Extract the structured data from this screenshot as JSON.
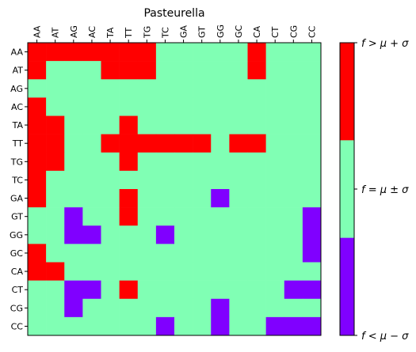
{
  "chart_data": {
    "type": "heatmap",
    "title": "Pasteurella",
    "x_labels": [
      "AA",
      "AT",
      "AG",
      "AC",
      "TA",
      "TT",
      "TG",
      "TC",
      "GA",
      "GT",
      "GG",
      "GC",
      "CA",
      "CT",
      "CG",
      "CC"
    ],
    "y_labels": [
      "AA",
      "AT",
      "AG",
      "AC",
      "TA",
      "TT",
      "TG",
      "TC",
      "GA",
      "GT",
      "GG",
      "GC",
      "CA",
      "CT",
      "CG",
      "CC"
    ],
    "x_axis_position": "top",
    "categories": [
      {
        "code": 1,
        "label": "f > μ + σ",
        "color": "#ff0000"
      },
      {
        "code": 0,
        "label": "f = μ ± σ",
        "color": "#80ffb4"
      },
      {
        "code": -1,
        "label": "f < μ − σ",
        "color": "#8000ff"
      }
    ],
    "matrix": [
      [
        1,
        1,
        1,
        1,
        1,
        1,
        1,
        0,
        0,
        0,
        0,
        0,
        1,
        0,
        0,
        0
      ],
      [
        1,
        0,
        0,
        0,
        1,
        1,
        1,
        0,
        0,
        0,
        0,
        0,
        1,
        0,
        0,
        0
      ],
      [
        0,
        0,
        0,
        0,
        0,
        0,
        0,
        0,
        0,
        0,
        0,
        0,
        0,
        0,
        0,
        0
      ],
      [
        1,
        0,
        0,
        0,
        0,
        0,
        0,
        0,
        0,
        0,
        0,
        0,
        0,
        0,
        0,
        0
      ],
      [
        1,
        1,
        0,
        0,
        0,
        1,
        0,
        0,
        0,
        0,
        0,
        0,
        0,
        0,
        0,
        0
      ],
      [
        1,
        1,
        0,
        0,
        1,
        1,
        1,
        1,
        1,
        1,
        0,
        1,
        1,
        0,
        0,
        0
      ],
      [
        1,
        1,
        0,
        0,
        0,
        1,
        0,
        0,
        0,
        0,
        0,
        0,
        0,
        0,
        0,
        0
      ],
      [
        1,
        0,
        0,
        0,
        0,
        0,
        0,
        0,
        0,
        0,
        0,
        0,
        0,
        0,
        0,
        0
      ],
      [
        1,
        0,
        0,
        0,
        0,
        1,
        0,
        0,
        0,
        0,
        -1,
        0,
        0,
        0,
        0,
        0
      ],
      [
        0,
        0,
        -1,
        0,
        0,
        1,
        0,
        0,
        0,
        0,
        0,
        0,
        0,
        0,
        0,
        -1
      ],
      [
        0,
        0,
        -1,
        -1,
        0,
        0,
        0,
        -1,
        0,
        0,
        0,
        0,
        0,
        0,
        0,
        -1
      ],
      [
        1,
        0,
        0,
        0,
        0,
        0,
        0,
        0,
        0,
        0,
        0,
        0,
        0,
        0,
        0,
        -1
      ],
      [
        1,
        1,
        0,
        0,
        0,
        0,
        0,
        0,
        0,
        0,
        0,
        0,
        0,
        0,
        0,
        0
      ],
      [
        0,
        0,
        -1,
        -1,
        0,
        1,
        0,
        0,
        0,
        0,
        0,
        0,
        0,
        0,
        -1,
        -1
      ],
      [
        0,
        0,
        -1,
        0,
        0,
        0,
        0,
        0,
        0,
        0,
        -1,
        0,
        0,
        0,
        0,
        0
      ],
      [
        0,
        0,
        0,
        0,
        0,
        0,
        0,
        -1,
        0,
        0,
        -1,
        0,
        0,
        -1,
        -1,
        -1
      ]
    ],
    "colorbar_ticks": [
      "f > μ + σ",
      "f = μ ± σ",
      "f < μ − σ"
    ]
  }
}
